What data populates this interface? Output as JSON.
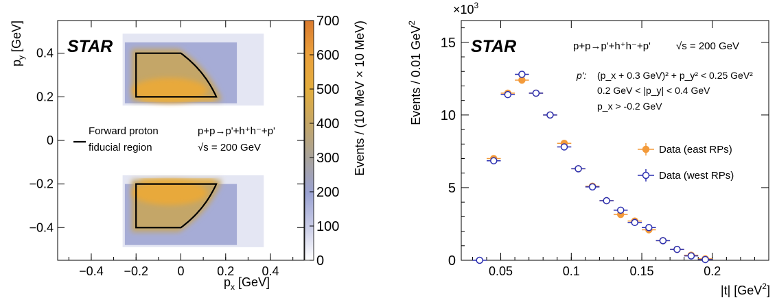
{
  "chart_data": [
    {
      "type": "heatmap",
      "experiment": "STAR",
      "xlabel": "p_x [GeV]",
      "ylabel": "p_y [GeV]",
      "xlim": [
        -0.55,
        0.55
      ],
      "ylim": [
        -0.55,
        0.55
      ],
      "xticks": [
        "−0.4",
        "−0.2",
        "0",
        "0.2",
        "0.4"
      ],
      "xtick_values": [
        -0.4,
        -0.2,
        0,
        0.2,
        0.4
      ],
      "yticks": [
        "−0.4",
        "−0.2",
        "0",
        "0.2",
        "0.4"
      ],
      "ytick_values": [
        -0.4,
        -0.2,
        0,
        0.2,
        0.4
      ],
      "colorbar": {
        "label": "Events / (10 MeV × 10 MeV)",
        "range": [
          0,
          700
        ],
        "ticks": [
          "0",
          "100",
          "200",
          "300",
          "400",
          "500",
          "600",
          "700"
        ],
        "tick_values": [
          0,
          100,
          200,
          300,
          400,
          500,
          600,
          700
        ],
        "colors": [
          "#ffffff",
          "#c9cce6",
          "#9aa2d2",
          "#a9a39a",
          "#c4a667",
          "#e2ad3e",
          "#eaa03c",
          "#d97a2e"
        ]
      },
      "legend": {
        "label_line1": "Forward proton",
        "label_line2": "fiducial region"
      },
      "annotation_reaction": "p+p→p'+h⁺h⁻+p'",
      "annotation_energy": "√s = 200 GeV",
      "density_bands": [
        {
          "py_range": [
            0.16,
            0.49
          ],
          "px_range": [
            -0.26,
            0.37
          ],
          "peak_value": 560
        },
        {
          "py_range": [
            -0.49,
            -0.16
          ],
          "px_range": [
            -0.26,
            0.37
          ],
          "peak_value": 560
        }
      ],
      "fiducial_region": {
        "conditions": [
          "(p_x + 0.3 GeV)² + p_y² < 0.25 GeV²",
          "0.2 GeV < |p_y| < 0.4 GeV",
          "p_x > -0.2 GeV"
        ]
      }
    },
    {
      "type": "scatter",
      "experiment": "STAR",
      "xlabel": "|t| [GeV²]",
      "ylabel": "Events / 0.01 GeV²",
      "y_multiplier": "×10³",
      "xlim": [
        0.022,
        0.24
      ],
      "ylim": [
        0,
        16.5
      ],
      "xticks": [
        "0.05",
        "0.1",
        "0.15",
        "0.2"
      ],
      "xtick_values": [
        0.05,
        0.1,
        0.15,
        0.2
      ],
      "yticks": [
        "0",
        "5",
        "10",
        "15"
      ],
      "ytick_values": [
        0,
        5,
        10,
        15
      ],
      "annotation_reaction": "p+p→p'+h⁺h⁻+p'",
      "annotation_energy": "√s = 200 GeV",
      "cuts": {
        "label": "p':",
        "line1": "(p_x + 0.3 GeV)² + p_y² < 0.25 GeV²",
        "line2": "0.2 GeV < |p_y| < 0.4 GeV",
        "line3": "p_x > -0.2 GeV"
      },
      "bin_half_width": 0.005,
      "series": [
        {
          "name": "Data (east RPs)",
          "color": "#f39a3a",
          "marker": "filled-circle",
          "x": [
            0.045,
            0.055,
            0.065,
            0.075,
            0.085,
            0.095,
            0.105,
            0.115,
            0.125,
            0.135,
            0.145,
            0.155,
            0.165,
            0.175,
            0.185,
            0.195
          ],
          "y": [
            7.0,
            11.5,
            12.4,
            11.5,
            10.0,
            8.05,
            6.3,
            5.1,
            4.1,
            3.15,
            2.7,
            2.1,
            1.35,
            0.75,
            0.35,
            0.1
          ]
        },
        {
          "name": "Data (west RPs)",
          "color": "#2b2fb0",
          "marker": "open-circle",
          "x": [
            0.035,
            0.045,
            0.055,
            0.065,
            0.075,
            0.085,
            0.095,
            0.105,
            0.115,
            0.125,
            0.135,
            0.145,
            0.155,
            0.165,
            0.175,
            0.185,
            0.195
          ],
          "y": [
            0.0,
            6.85,
            11.4,
            12.8,
            11.5,
            10.0,
            7.8,
            6.3,
            5.05,
            4.1,
            3.45,
            2.6,
            2.25,
            1.35,
            0.75,
            0.3,
            0.05
          ]
        }
      ]
    }
  ]
}
